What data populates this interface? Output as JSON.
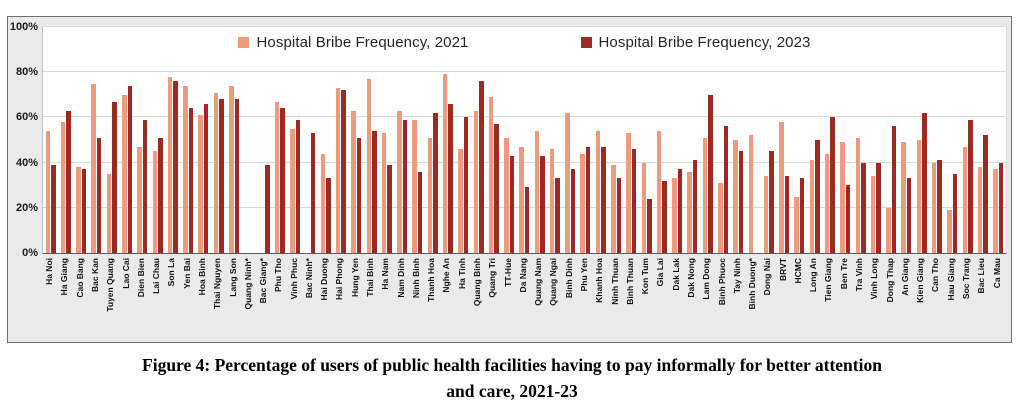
{
  "figure": {
    "caption_line1": "Figure 4: Percentage of users of public health facilities having to pay informally for better attention",
    "caption_line2": "and care, 2021-23"
  },
  "chart_data": {
    "type": "bar",
    "title": "",
    "xlabel": "",
    "ylabel": "",
    "ylim": [
      0,
      100
    ],
    "yticks": [
      "0%",
      "20%",
      "40%",
      "60%",
      "80%",
      "100%"
    ],
    "grid": true,
    "legend_position": "top-center",
    "series": [
      {
        "name": "Hospital Bribe Frequency, 2021",
        "color": "#EC9B7D"
      },
      {
        "name": "Hospital Bribe Frequency, 2023",
        "color": "#9B2B22"
      }
    ],
    "provinces": [
      {
        "name": "Ha Noi",
        "y2021": 54,
        "y2023": 39
      },
      {
        "name": "Ha Giang",
        "y2021": 58,
        "y2023": 63
      },
      {
        "name": "Cao Bang",
        "y2021": 38,
        "y2023": 37
      },
      {
        "name": "Bac Kan",
        "y2021": 75,
        "y2023": 51
      },
      {
        "name": "Tuyen Quang",
        "y2021": 35,
        "y2023": 67
      },
      {
        "name": "Lao Cai",
        "y2021": 70,
        "y2023": 74
      },
      {
        "name": "Dien Bien",
        "y2021": 47,
        "y2023": 59
      },
      {
        "name": "Lai Chau",
        "y2021": 45,
        "y2023": 51
      },
      {
        "name": "Son La",
        "y2021": 78,
        "y2023": 76
      },
      {
        "name": "Yen Bai",
        "y2021": 74,
        "y2023": 64
      },
      {
        "name": "Hoa Binh",
        "y2021": 61,
        "y2023": 66
      },
      {
        "name": "Thai Nguyen",
        "y2021": 71,
        "y2023": 68
      },
      {
        "name": "Lang Son",
        "y2021": 74,
        "y2023": 68
      },
      {
        "name": "Quang Ninh*",
        "y2021": null,
        "y2023": null
      },
      {
        "name": "Bac Giang*",
        "y2021": null,
        "y2023": 39
      },
      {
        "name": "Phu Tho",
        "y2021": 67,
        "y2023": 64
      },
      {
        "name": "Vinh Phuc",
        "y2021": 55,
        "y2023": 59
      },
      {
        "name": "Bac Ninh*",
        "y2021": null,
        "y2023": 53
      },
      {
        "name": "Hai Duong",
        "y2021": 44,
        "y2023": 33
      },
      {
        "name": "Hai Phong",
        "y2021": 73,
        "y2023": 72
      },
      {
        "name": "Hung Yen",
        "y2021": 63,
        "y2023": 51
      },
      {
        "name": "Thai Binh",
        "y2021": 77,
        "y2023": 54
      },
      {
        "name": "Ha Nam",
        "y2021": 53,
        "y2023": 39
      },
      {
        "name": "Nam Dinh",
        "y2021": 63,
        "y2023": 59
      },
      {
        "name": "Ninh Binh",
        "y2021": 59,
        "y2023": 36
      },
      {
        "name": "Thanh Hoa",
        "y2021": 51,
        "y2023": 62
      },
      {
        "name": "Nghe An",
        "y2021": 79,
        "y2023": 66
      },
      {
        "name": "Ha Tinh",
        "y2021": 46,
        "y2023": 60
      },
      {
        "name": "Quang Binh",
        "y2021": 63,
        "y2023": 76
      },
      {
        "name": "Quang Tri",
        "y2021": 69,
        "y2023": 57
      },
      {
        "name": "TT-Hue",
        "y2021": 51,
        "y2023": 43
      },
      {
        "name": "Da Nang",
        "y2021": 47,
        "y2023": 29
      },
      {
        "name": "Quang Nam",
        "y2021": 54,
        "y2023": 43
      },
      {
        "name": "Quang Ngai",
        "y2021": 46,
        "y2023": 33
      },
      {
        "name": "Binh Dinh",
        "y2021": 62,
        "y2023": 37
      },
      {
        "name": "Phu Yen",
        "y2021": 44,
        "y2023": 47
      },
      {
        "name": "Khanh Hoa",
        "y2021": 54,
        "y2023": 47
      },
      {
        "name": "Ninh Thuan",
        "y2021": 39,
        "y2023": 33
      },
      {
        "name": "Binh Thuan",
        "y2021": 53,
        "y2023": 46
      },
      {
        "name": "Kon Tum",
        "y2021": 40,
        "y2023": 24
      },
      {
        "name": "Gia Lai",
        "y2021": 54,
        "y2023": 32
      },
      {
        "name": "Dak Lak",
        "y2021": 33,
        "y2023": 37
      },
      {
        "name": "Dak Nong",
        "y2021": 36,
        "y2023": 41
      },
      {
        "name": "Lam Dong",
        "y2021": 51,
        "y2023": 70
      },
      {
        "name": "Binh Phuoc",
        "y2021": 31,
        "y2023": 56
      },
      {
        "name": "Tay Ninh",
        "y2021": 50,
        "y2023": 45
      },
      {
        "name": "Binh Duong*",
        "y2021": 52,
        "y2023": null
      },
      {
        "name": "Dong Nai",
        "y2021": 34,
        "y2023": 45
      },
      {
        "name": "BRVT",
        "y2021": 58,
        "y2023": 34
      },
      {
        "name": "HCMC",
        "y2021": 25,
        "y2023": 33
      },
      {
        "name": "Long An",
        "y2021": 41,
        "y2023": 50
      },
      {
        "name": "Tien Giang",
        "y2021": 44,
        "y2023": 60
      },
      {
        "name": "Ben Tre",
        "y2021": 49,
        "y2023": 30
      },
      {
        "name": "Tra Vinh",
        "y2021": 51,
        "y2023": 40
      },
      {
        "name": "Vinh Long",
        "y2021": 34,
        "y2023": 40
      },
      {
        "name": "Dong Thap",
        "y2021": 20,
        "y2023": 56
      },
      {
        "name": "An Giang",
        "y2021": 49,
        "y2023": 33
      },
      {
        "name": "Kien Giang",
        "y2021": 50,
        "y2023": 62
      },
      {
        "name": "Can Tho",
        "y2021": 40,
        "y2023": 41
      },
      {
        "name": "Hau Giang",
        "y2021": 19,
        "y2023": 35
      },
      {
        "name": "Soc Trang",
        "y2021": 47,
        "y2023": 59
      },
      {
        "name": "Bac Lieu",
        "y2021": 38,
        "y2023": 52
      },
      {
        "name": "Ca Mau",
        "y2021": 37,
        "y2023": 40
      }
    ]
  }
}
